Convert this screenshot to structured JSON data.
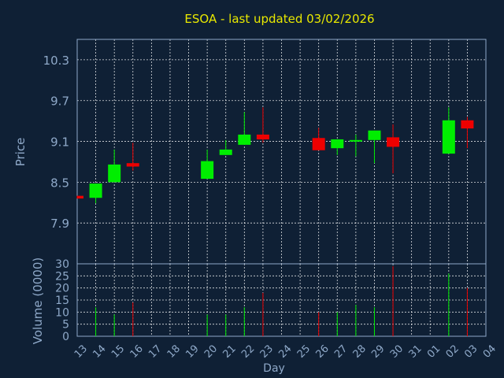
{
  "chart_data": {
    "type": "candlestick",
    "title": "ESOA - last updated 03/02/2026",
    "xlabel": "Day",
    "price_panel": {
      "ylabel": "Price",
      "yticks": [
        "10.3",
        "9.7",
        "9.1",
        "8.5",
        "7.9"
      ],
      "ylim": [
        7.3,
        10.6
      ]
    },
    "volume_panel": {
      "ylabel": "Volume (0000)",
      "yticks": [
        "30",
        "25",
        "20",
        "15",
        "10",
        "5",
        "0"
      ],
      "ylim": [
        0,
        30
      ]
    },
    "x_labels": [
      "13",
      "14",
      "15",
      "16",
      "17",
      "18",
      "19",
      "20",
      "21",
      "22",
      "23",
      "24",
      "25",
      "26",
      "27",
      "28",
      "29",
      "30",
      "31",
      "01",
      "02",
      "03",
      "04"
    ],
    "candles": [
      {
        "day": "13",
        "open": 8.3,
        "high": 8.3,
        "low": 8.26,
        "close": 8.26,
        "volume": 0
      },
      {
        "day": "14",
        "open": 8.27,
        "high": 8.48,
        "low": 8.19,
        "close": 8.48,
        "volume": 12
      },
      {
        "day": "15",
        "open": 8.5,
        "high": 8.98,
        "low": 8.5,
        "close": 8.76,
        "volume": 9
      },
      {
        "day": "16",
        "open": 8.78,
        "high": 9.08,
        "low": 8.67,
        "close": 8.73,
        "volume": 14
      },
      {
        "day": "20",
        "open": 8.55,
        "high": 8.98,
        "low": 8.55,
        "close": 8.81,
        "volume": 9
      },
      {
        "day": "21",
        "open": 8.9,
        "high": 9.12,
        "low": 8.9,
        "close": 8.98,
        "volume": 9
      },
      {
        "day": "22",
        "open": 9.05,
        "high": 9.53,
        "low": 9.05,
        "close": 9.2,
        "volume": 12
      },
      {
        "day": "23",
        "open": 9.2,
        "high": 9.6,
        "low": 9.08,
        "close": 9.13,
        "volume": 18
      },
      {
        "day": "26",
        "open": 9.15,
        "high": 9.3,
        "low": 8.97,
        "close": 8.97,
        "volume": 10
      },
      {
        "day": "27",
        "open": 9.0,
        "high": 9.13,
        "low": 8.9,
        "close": 9.13,
        "volume": 10
      },
      {
        "day": "28",
        "open": 9.1,
        "high": 9.2,
        "low": 8.88,
        "close": 9.12,
        "volume": 13
      },
      {
        "day": "29",
        "open": 9.12,
        "high": 9.26,
        "low": 8.78,
        "close": 9.26,
        "volume": 12
      },
      {
        "day": "30",
        "open": 9.16,
        "high": 9.35,
        "low": 8.63,
        "close": 9.02,
        "volume": 29
      },
      {
        "day": "02",
        "open": 8.92,
        "high": 9.6,
        "low": 8.92,
        "close": 9.41,
        "volume": 26
      },
      {
        "day": "03",
        "open": 9.41,
        "high": 9.46,
        "low": 9.0,
        "close": 9.29,
        "volume": 20
      }
    ],
    "colors": {
      "background": "#0f2035",
      "up": "#00ee00",
      "down": "#ee0000",
      "grid": "#ffffff",
      "axis_text": "#8fa9c9",
      "title": "#e8e800"
    },
    "grid": true
  }
}
